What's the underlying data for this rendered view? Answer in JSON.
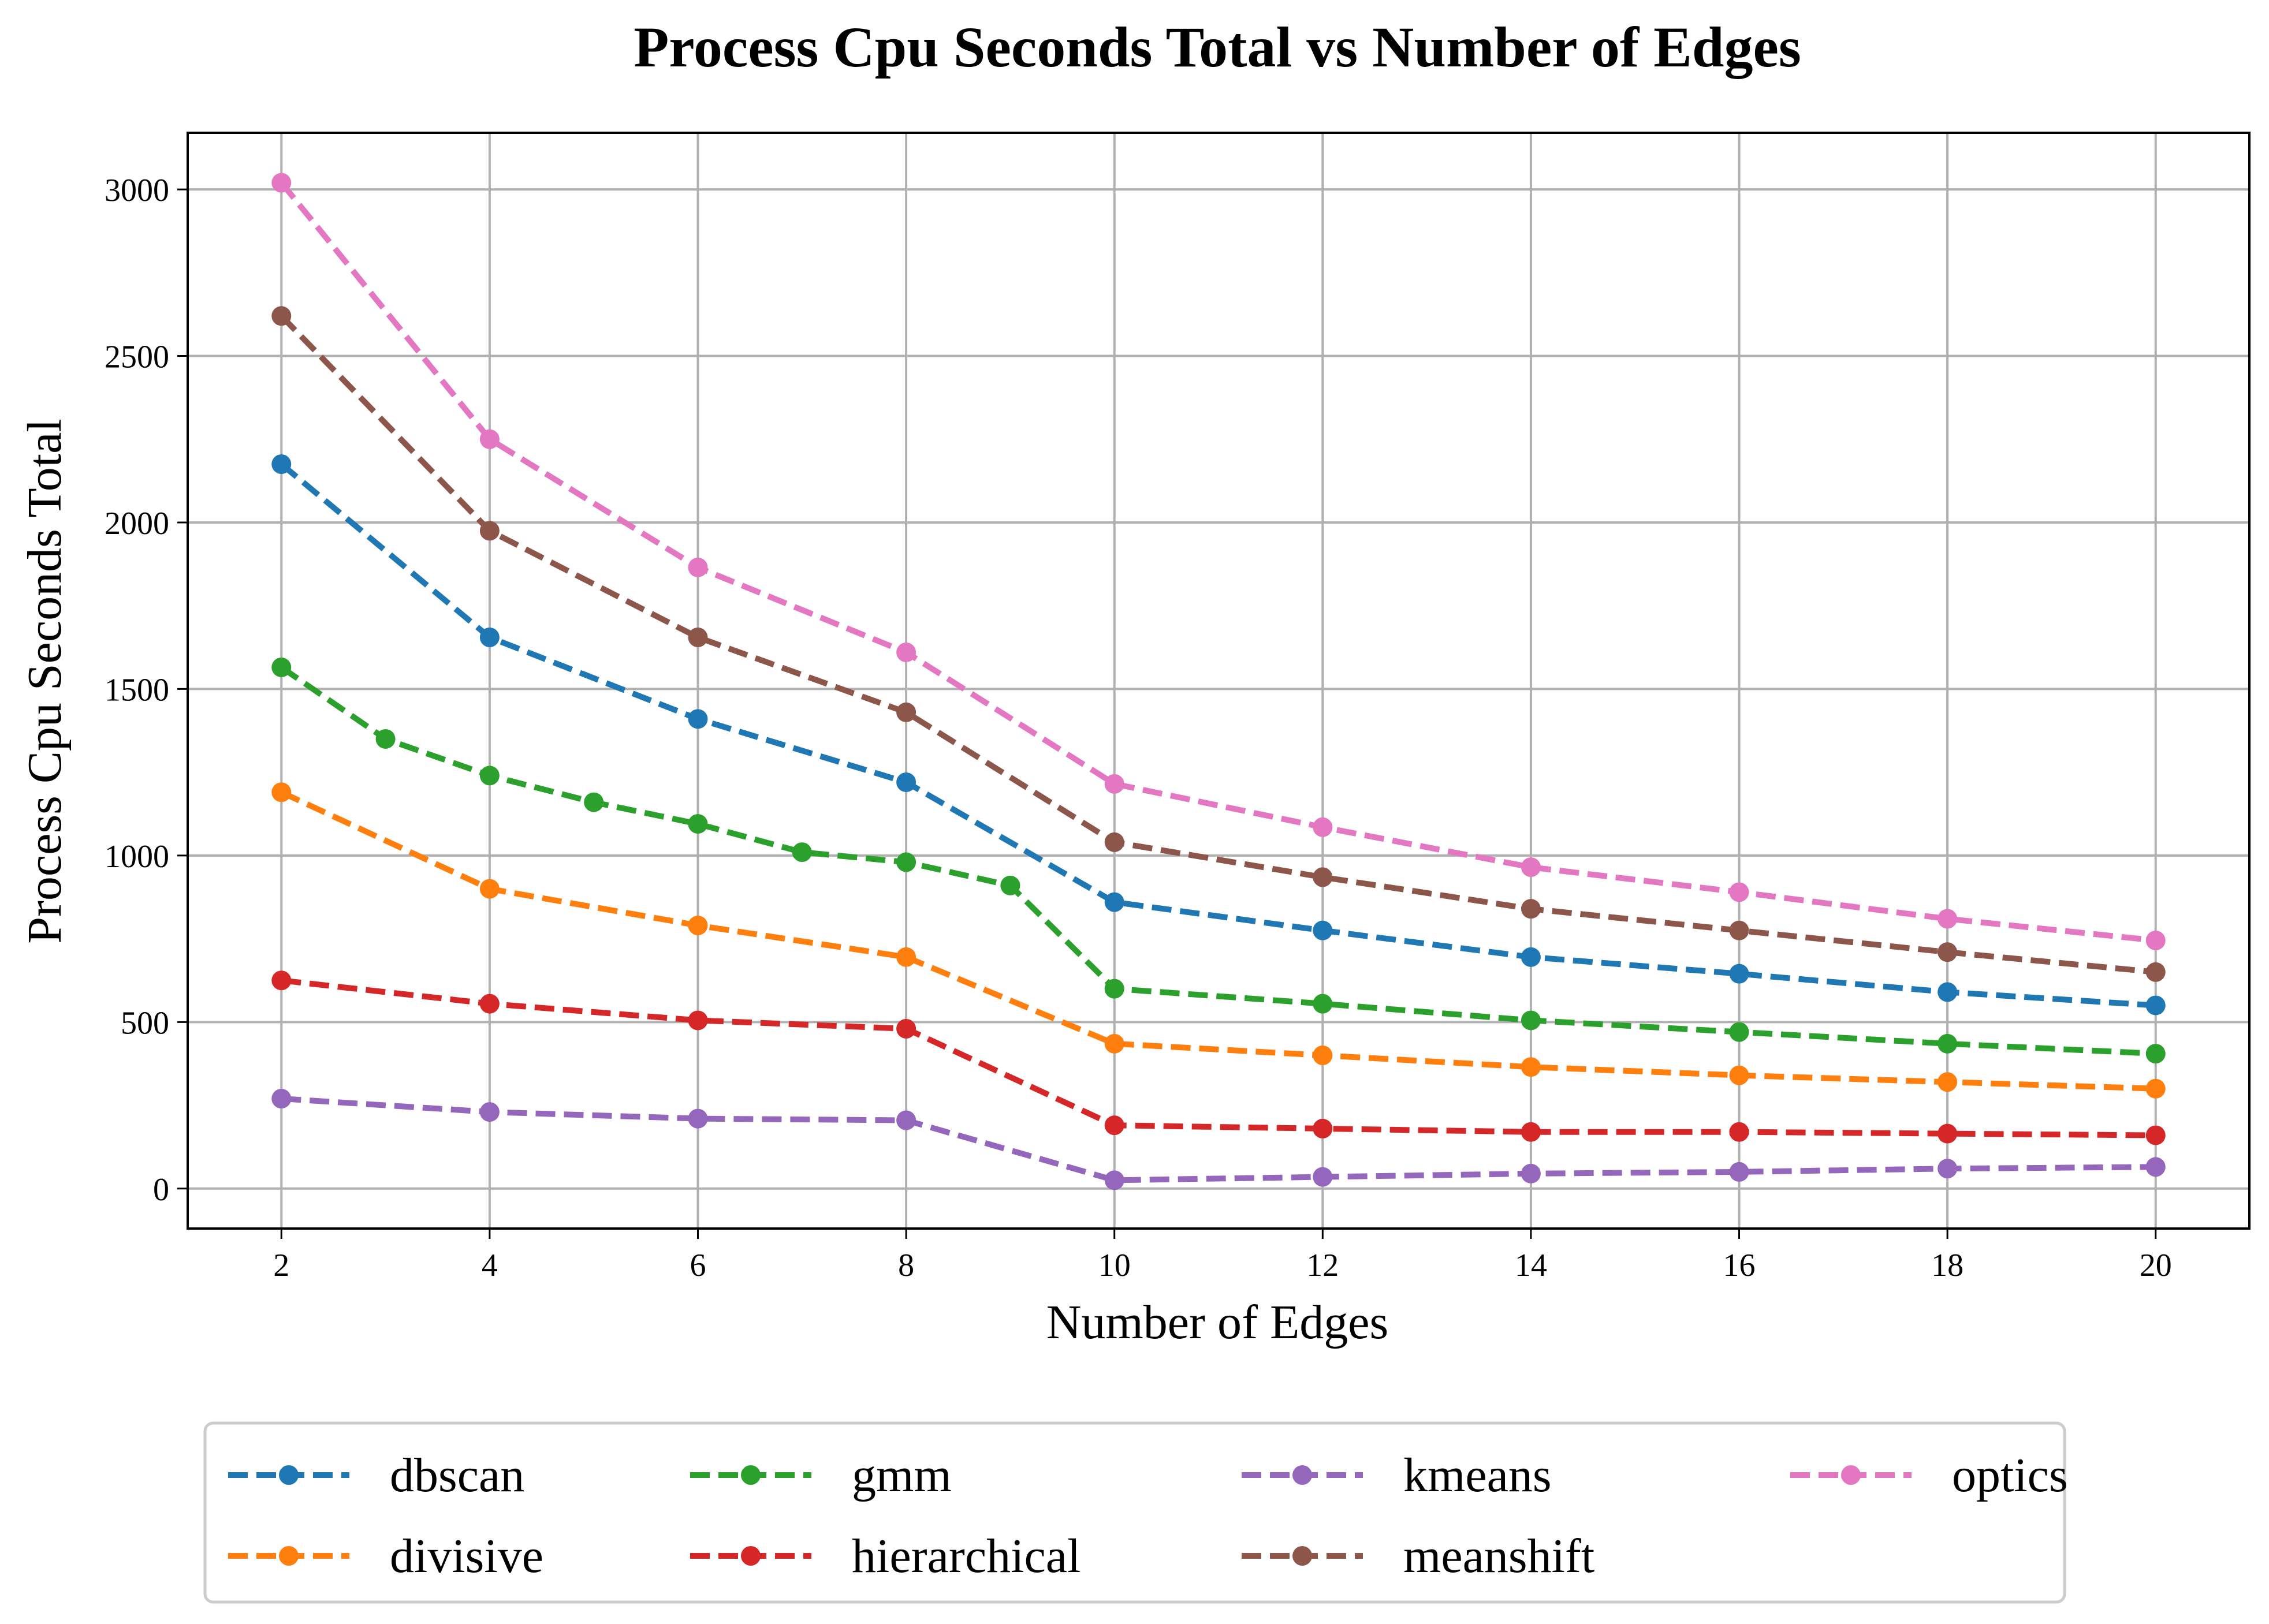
{
  "chart_data": {
    "type": "line",
    "title": "Process Cpu Seconds Total vs Number of Edges",
    "xlabel": "Number of Edges",
    "ylabel": "Process Cpu Seconds Total",
    "xlim": [
      1.1,
      20.9
    ],
    "ylim": [
      -120,
      3170
    ],
    "xticks": [
      2,
      4,
      6,
      8,
      10,
      12,
      14,
      16,
      18,
      20
    ],
    "yticks": [
      0,
      500,
      1000,
      1500,
      2000,
      2500,
      3000
    ],
    "grid": true,
    "legend_position": "bottom-center",
    "line_style": "dashed",
    "marker": "circle",
    "series": [
      {
        "name": "dbscan",
        "color": "#1f77b4",
        "x": [
          2,
          4,
          6,
          8,
          10,
          12,
          14,
          16,
          18,
          20
        ],
        "y": [
          2175,
          1655,
          1410,
          1220,
          860,
          775,
          695,
          645,
          590,
          550
        ]
      },
      {
        "name": "divisive",
        "color": "#ff7f0e",
        "x": [
          2,
          4,
          6,
          8,
          10,
          12,
          14,
          16,
          18,
          20
        ],
        "y": [
          1190,
          900,
          790,
          695,
          435,
          400,
          365,
          340,
          320,
          300
        ]
      },
      {
        "name": "gmm",
        "color": "#2ca02c",
        "x": [
          2,
          3,
          4,
          5,
          6,
          7,
          8,
          9,
          10,
          12,
          14,
          16,
          18,
          20
        ],
        "y": [
          1565,
          1350,
          1240,
          1160,
          1095,
          1010,
          980,
          910,
          600,
          555,
          505,
          470,
          435,
          405
        ]
      },
      {
        "name": "hierarchical",
        "color": "#d62728",
        "x": [
          2,
          4,
          6,
          8,
          10,
          12,
          14,
          16,
          18,
          20
        ],
        "y": [
          625,
          555,
          505,
          480,
          190,
          180,
          170,
          170,
          165,
          160
        ]
      },
      {
        "name": "kmeans",
        "color": "#9467bd",
        "x": [
          2,
          4,
          6,
          8,
          10,
          12,
          14,
          16,
          18,
          20
        ],
        "y": [
          270,
          230,
          210,
          205,
          25,
          35,
          45,
          50,
          60,
          65
        ]
      },
      {
        "name": "meanshift",
        "color": "#8c564b",
        "x": [
          2,
          4,
          6,
          8,
          10,
          12,
          14,
          16,
          18,
          20
        ],
        "y": [
          2620,
          1975,
          1655,
          1430,
          1040,
          935,
          840,
          775,
          710,
          650
        ]
      },
      {
        "name": "optics",
        "color": "#e377c2",
        "x": [
          2,
          4,
          6,
          8,
          10,
          12,
          14,
          16,
          18,
          20
        ],
        "y": [
          3020,
          2250,
          1865,
          1610,
          1215,
          1085,
          965,
          890,
          810,
          745
        ]
      }
    ],
    "legend_order": [
      "dbscan",
      "gmm",
      "kmeans",
      "optics",
      "divisive",
      "hierarchical",
      "meanshift"
    ]
  }
}
